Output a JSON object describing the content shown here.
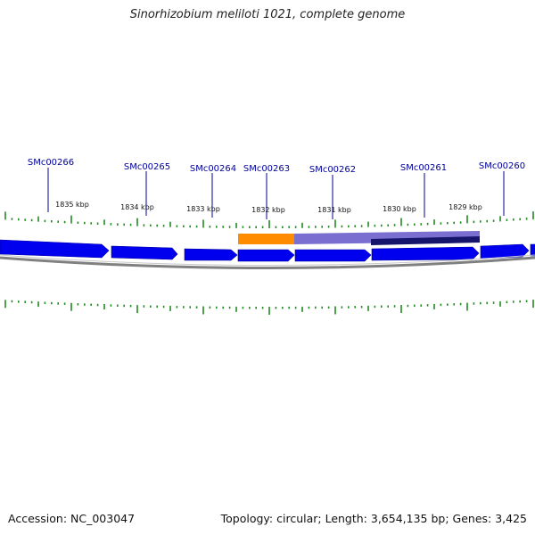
{
  "title": "Sinorhizobium meliloti 1021, complete genome",
  "footer": {
    "accession": "Accession: NC_003047",
    "summary": "Topology: circular; Length: 3,654,135 bp; Genes: 3,425"
  },
  "colors": {
    "gene": "#0000ee",
    "gene_dark": "#0000a0",
    "tick": "#228b22",
    "label": "#000099",
    "orange_feature": "#ff8c00",
    "purple_feature": "#7a6fd0",
    "navy_feature": "#15156b",
    "backbone": "#808080"
  },
  "gene_labels": [
    "SMc00266",
    "SMc00265",
    "SMc00264",
    "SMc00263",
    "SMc00262",
    "SMc00261",
    "SMc00260"
  ],
  "kbp_labels": [
    "1835 kbp",
    "1834 kbp",
    "1833 kbp",
    "1832 kbp",
    "1831 kbp",
    "1830 kbp",
    "1829 kbp"
  ]
}
